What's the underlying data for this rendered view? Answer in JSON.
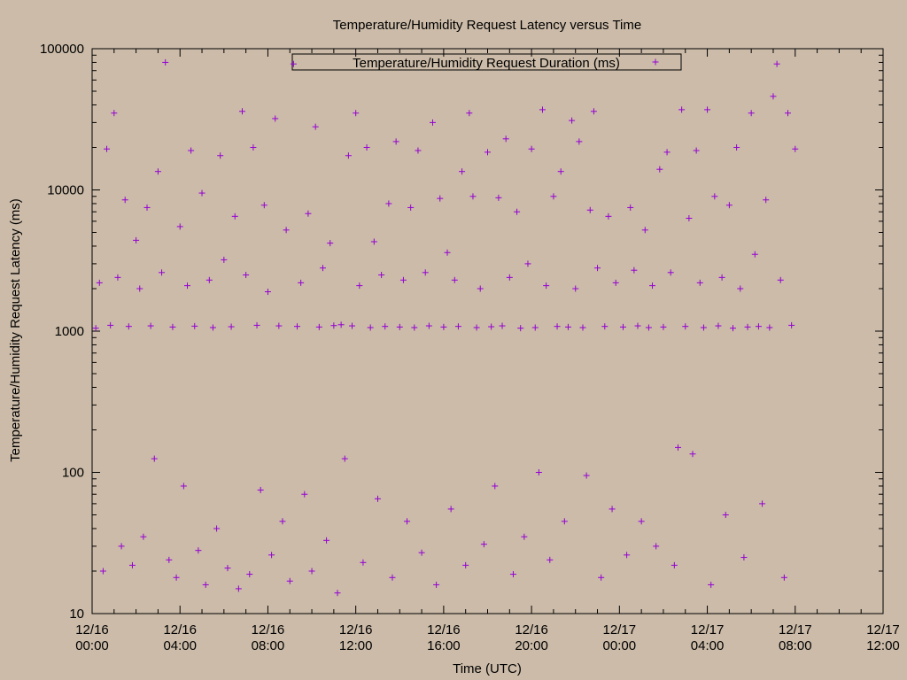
{
  "chart_data": {
    "type": "scatter",
    "title": "Temperature/Humidity Request Latency versus Time",
    "xlabel": "Time (UTC)",
    "ylabel": "Temperature/Humidity Request Latency (ms)",
    "y_scale": "log",
    "ylim": [
      10,
      100000
    ],
    "xlim": [
      "12/16 00:00",
      "12/17 12:00"
    ],
    "grid": false,
    "legend_position": "top-center",
    "x_ticks": [
      {
        "date": "12/16",
        "time": "00:00"
      },
      {
        "date": "12/16",
        "time": "04:00"
      },
      {
        "date": "12/16",
        "time": "08:00"
      },
      {
        "date": "12/16",
        "time": "12:00"
      },
      {
        "date": "12/16",
        "time": "16:00"
      },
      {
        "date": "12/16",
        "time": "20:00"
      },
      {
        "date": "12/17",
        "time": "00:00"
      },
      {
        "date": "12/17",
        "time": "04:00"
      },
      {
        "date": "12/17",
        "time": "08:00"
      },
      {
        "date": "12/17",
        "time": "12:00"
      }
    ],
    "y_ticks": [
      "10",
      "100",
      "1000",
      "10000",
      "100000"
    ],
    "colors": {
      "series": "#9400d3",
      "axis": "#000000"
    },
    "series": [
      {
        "name": "Temperature/Humidity Request Duration (ms)",
        "marker": "+",
        "points": [
          [
            "12/16 00:10",
            1050
          ],
          [
            "12/16 00:20",
            2200
          ],
          [
            "12/16 00:30",
            20
          ],
          [
            "12/16 00:40",
            19500
          ],
          [
            "12/16 00:50",
            1100
          ],
          [
            "12/16 01:00",
            35000
          ],
          [
            "12/16 01:10",
            2400
          ],
          [
            "12/16 01:20",
            30
          ],
          [
            "12/16 01:30",
            8500
          ],
          [
            "12/16 01:40",
            1080
          ],
          [
            "12/16 01:50",
            22
          ],
          [
            "12/16 02:00",
            4400
          ],
          [
            "12/16 02:10",
            2000
          ],
          [
            "12/16 02:20",
            35
          ],
          [
            "12/16 02:30",
            7500
          ],
          [
            "12/16 02:40",
            1090
          ],
          [
            "12/16 02:50",
            125
          ],
          [
            "12/16 03:00",
            13500
          ],
          [
            "12/16 03:10",
            2600
          ],
          [
            "12/16 03:20",
            80000
          ],
          [
            "12/16 03:30",
            24
          ],
          [
            "12/16 03:40",
            1070
          ],
          [
            "12/16 03:50",
            18
          ],
          [
            "12/16 04:00",
            5500
          ],
          [
            "12/16 04:10",
            80
          ],
          [
            "12/16 04:20",
            2100
          ],
          [
            "12/16 04:30",
            19000
          ],
          [
            "12/16 04:40",
            1085
          ],
          [
            "12/16 04:50",
            28
          ],
          [
            "12/16 05:00",
            9500
          ],
          [
            "12/16 05:10",
            16
          ],
          [
            "12/16 05:20",
            2300
          ],
          [
            "12/16 05:30",
            1060
          ],
          [
            "12/16 05:40",
            40
          ],
          [
            "12/16 05:50",
            17500
          ],
          [
            "12/16 06:00",
            3200
          ],
          [
            "12/16 06:10",
            21
          ],
          [
            "12/16 06:20",
            1075
          ],
          [
            "12/16 06:30",
            6500
          ],
          [
            "12/16 06:40",
            15
          ],
          [
            "12/16 06:50",
            36000
          ],
          [
            "12/16 07:00",
            2500
          ],
          [
            "12/16 07:10",
            19
          ],
          [
            "12/16 07:20",
            20000
          ],
          [
            "12/16 07:30",
            1100
          ],
          [
            "12/16 07:40",
            75
          ],
          [
            "12/16 07:50",
            7800
          ],
          [
            "12/16 08:00",
            1900
          ],
          [
            "12/16 08:10",
            26
          ],
          [
            "12/16 08:20",
            32000
          ],
          [
            "12/16 08:30",
            1090
          ],
          [
            "12/16 08:40",
            45
          ],
          [
            "12/16 08:50",
            5200
          ],
          [
            "12/16 09:00",
            17
          ],
          [
            "12/16 09:10",
            78000
          ],
          [
            "12/16 09:20",
            1080
          ],
          [
            "12/16 09:30",
            2200
          ],
          [
            "12/16 09:40",
            70
          ],
          [
            "12/16 09:50",
            6800
          ],
          [
            "12/16 10:00",
            20
          ],
          [
            "12/16 10:10",
            28000
          ],
          [
            "12/16 10:20",
            1070
          ],
          [
            "12/16 10:30",
            2800
          ],
          [
            "12/16 10:40",
            33
          ],
          [
            "12/16 10:50",
            4200
          ],
          [
            "12/16 11:00",
            1095
          ],
          [
            "12/16 11:10",
            14
          ],
          [
            "12/16 11:20",
            1110
          ],
          [
            "12/16 11:30",
            125
          ],
          [
            "12/16 11:40",
            17500
          ],
          [
            "12/16 11:50",
            1090
          ],
          [
            "12/16 12:00",
            35000
          ],
          [
            "12/16 12:10",
            2100
          ],
          [
            "12/16 12:20",
            23
          ],
          [
            "12/16 12:30",
            20000
          ],
          [
            "12/16 12:40",
            1060
          ],
          [
            "12/16 12:50",
            4300
          ],
          [
            "12/16 13:00",
            65
          ],
          [
            "12/16 13:10",
            2500
          ],
          [
            "12/16 13:20",
            1080
          ],
          [
            "12/16 13:30",
            8000
          ],
          [
            "12/16 13:40",
            18
          ],
          [
            "12/16 13:50",
            22000
          ],
          [
            "12/16 14:00",
            1070
          ],
          [
            "12/16 14:10",
            2300
          ],
          [
            "12/16 14:20",
            45
          ],
          [
            "12/16 14:30",
            7500
          ],
          [
            "12/16 14:40",
            1060
          ],
          [
            "12/16 14:50",
            19000
          ],
          [
            "12/16 15:00",
            27
          ],
          [
            "12/16 15:10",
            2600
          ],
          [
            "12/16 15:20",
            1090
          ],
          [
            "12/16 15:30",
            30000
          ],
          [
            "12/16 15:40",
            16
          ],
          [
            "12/16 15:50",
            8700
          ],
          [
            "12/16 16:00",
            1070
          ],
          [
            "12/16 16:10",
            3600
          ],
          [
            "12/16 16:20",
            55
          ],
          [
            "12/16 16:30",
            2300
          ],
          [
            "12/16 16:40",
            1080
          ],
          [
            "12/16 16:50",
            13500
          ],
          [
            "12/16 17:00",
            22
          ],
          [
            "12/16 17:10",
            35000
          ],
          [
            "12/16 17:20",
            9000
          ],
          [
            "12/16 17:30",
            1060
          ],
          [
            "12/16 17:40",
            2000
          ],
          [
            "12/16 17:50",
            31
          ],
          [
            "12/16 18:00",
            18500
          ],
          [
            "12/16 18:10",
            1075
          ],
          [
            "12/16 18:20",
            80
          ],
          [
            "12/16 18:30",
            8800
          ],
          [
            "12/16 18:40",
            1090
          ],
          [
            "12/16 18:50",
            23000
          ],
          [
            "12/16 19:00",
            2400
          ],
          [
            "12/16 19:10",
            19
          ],
          [
            "12/16 19:20",
            7000
          ],
          [
            "12/16 19:30",
            1050
          ],
          [
            "12/16 19:40",
            35
          ],
          [
            "12/16 19:50",
            3000
          ],
          [
            "12/16 20:00",
            19500
          ],
          [
            "12/16 20:10",
            1060
          ],
          [
            "12/16 20:20",
            100
          ],
          [
            "12/16 20:30",
            37000
          ],
          [
            "12/16 20:40",
            2100
          ],
          [
            "12/16 20:50",
            24
          ],
          [
            "12/16 21:00",
            9000
          ],
          [
            "12/16 21:10",
            1080
          ],
          [
            "12/16 21:20",
            13500
          ],
          [
            "12/16 21:30",
            45
          ],
          [
            "12/16 21:40",
            1070
          ],
          [
            "12/16 21:50",
            31000
          ],
          [
            "12/16 22:00",
            2000
          ],
          [
            "12/16 22:10",
            22000
          ],
          [
            "12/16 22:20",
            1060
          ],
          [
            "12/16 22:30",
            95
          ],
          [
            "12/16 22:40",
            7200
          ],
          [
            "12/16 22:50",
            36000
          ],
          [
            "12/16 23:00",
            2800
          ],
          [
            "12/16 23:10",
            18
          ],
          [
            "12/16 23:20",
            1080
          ],
          [
            "12/16 23:30",
            6500
          ],
          [
            "12/16 23:40",
            55
          ],
          [
            "12/16 23:50",
            2200
          ],
          [
            "12/17 00:10",
            1070
          ],
          [
            "12/17 00:20",
            26
          ],
          [
            "12/17 00:30",
            7500
          ],
          [
            "12/17 00:40",
            2700
          ],
          [
            "12/17 00:50",
            1090
          ],
          [
            "12/17 01:00",
            45
          ],
          [
            "12/17 01:10",
            5200
          ],
          [
            "12/17 01:20",
            1060
          ],
          [
            "12/17 01:30",
            2100
          ],
          [
            "12/17 01:40",
            30
          ],
          [
            "12/17 01:50",
            14000
          ],
          [
            "12/17 02:00",
            1070
          ],
          [
            "12/17 02:10",
            18500
          ],
          [
            "12/17 02:20",
            2600
          ],
          [
            "12/17 02:30",
            22
          ],
          [
            "12/17 02:40",
            150
          ],
          [
            "12/17 02:50",
            37000
          ],
          [
            "12/17 03:00",
            1080
          ],
          [
            "12/17 03:10",
            6300
          ],
          [
            "12/17 03:20",
            135
          ],
          [
            "12/17 03:30",
            19000
          ],
          [
            "12/17 03:40",
            2200
          ],
          [
            "12/17 03:50",
            1060
          ],
          [
            "12/17 04:00",
            37000
          ],
          [
            "12/17 04:10",
            16
          ],
          [
            "12/17 04:20",
            9000
          ],
          [
            "12/17 04:30",
            1090
          ],
          [
            "12/17 04:40",
            2400
          ],
          [
            "12/17 04:50",
            50
          ],
          [
            "12/17 05:00",
            7800
          ],
          [
            "12/17 05:10",
            1050
          ],
          [
            "12/17 05:20",
            20000
          ],
          [
            "12/17 05:30",
            2000
          ],
          [
            "12/17 05:40",
            25
          ],
          [
            "12/17 05:50",
            1070
          ],
          [
            "12/17 06:00",
            35000
          ],
          [
            "12/17 06:10",
            3500
          ],
          [
            "12/17 06:20",
            1080
          ],
          [
            "12/17 06:30",
            60
          ],
          [
            "12/17 06:40",
            8500
          ],
          [
            "12/17 06:50",
            1060
          ],
          [
            "12/17 07:00",
            46000
          ],
          [
            "12/17 07:10",
            78000
          ],
          [
            "12/17 07:20",
            2300
          ],
          [
            "12/17 07:30",
            18
          ],
          [
            "12/17 07:40",
            35000
          ],
          [
            "12/17 07:50",
            1100
          ],
          [
            "12/17 08:00",
            19500
          ]
        ]
      }
    ]
  }
}
